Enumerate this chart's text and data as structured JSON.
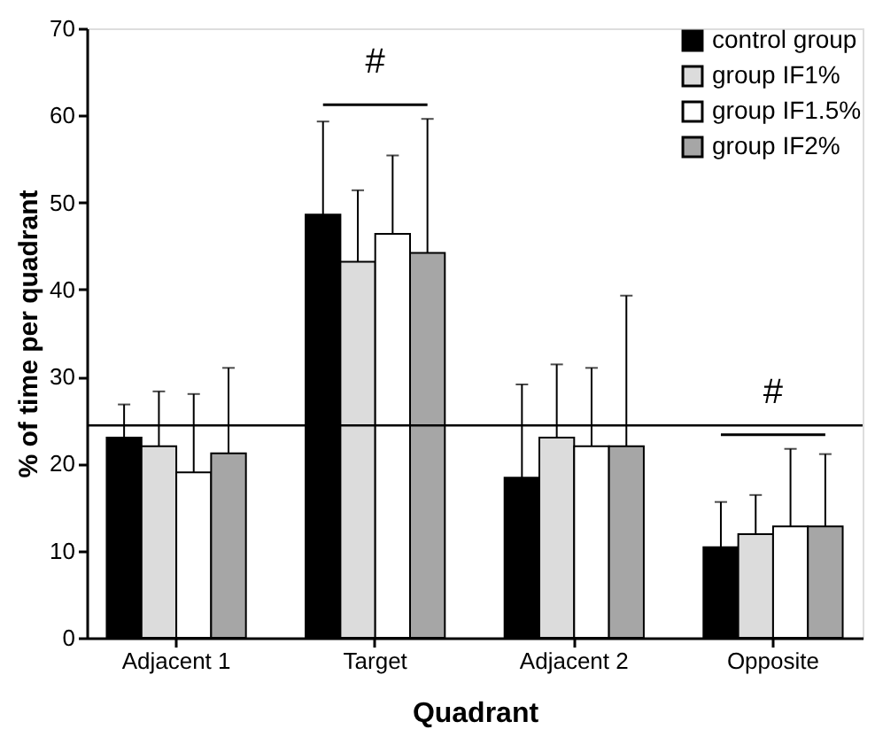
{
  "chart_data": {
    "type": "bar",
    "xlabel": "Quadrant",
    "ylabel": "% of time per quadrant",
    "categories": [
      "Adjacent 1",
      "Target",
      "Adjacent 2",
      "Opposite"
    ],
    "series": [
      {
        "name": "control group",
        "color": "#000000",
        "values": [
          23.0,
          48.6,
          18.4,
          10.4
        ],
        "errors": [
          [
            23.0,
            26.8
          ],
          [
            48.6,
            59.3
          ],
          [
            18.4,
            29.1
          ],
          [
            10.4,
            15.6
          ]
        ]
      },
      {
        "name": "group IF1%",
        "color": "#dcdcdc",
        "values": [
          22.0,
          43.2,
          23.0,
          11.9
        ],
        "errors": [
          [
            22.0,
            28.3
          ],
          [
            43.2,
            51.4
          ],
          [
            23.0,
            31.4
          ],
          [
            11.9,
            16.4
          ]
        ]
      },
      {
        "name": "group IF1.5%",
        "color": "#ffffff",
        "values": [
          19.0,
          46.4,
          22.0,
          12.8
        ],
        "errors": [
          [
            19.0,
            28.0
          ],
          [
            46.4,
            55.4
          ],
          [
            22.0,
            31.0
          ],
          [
            12.8,
            21.7
          ]
        ]
      },
      {
        "name": "group IF2%",
        "color": "#a6a6a6",
        "values": [
          21.2,
          44.2,
          22.0,
          12.8
        ],
        "errors": [
          [
            21.2,
            31.0
          ],
          [
            44.2,
            59.6
          ],
          [
            22.0,
            39.3
          ],
          [
            12.8,
            21.1
          ]
        ]
      }
    ],
    "ylim": [
      0,
      70
    ],
    "yticks": [
      0,
      10,
      20,
      30,
      40,
      50,
      60,
      70
    ],
    "ref_lines": [
      {
        "axis": "y",
        "value": 24.4,
        "label": null
      }
    ],
    "annotations": [
      "#",
      "#"
    ],
    "grid": false,
    "legend": "top right"
  }
}
